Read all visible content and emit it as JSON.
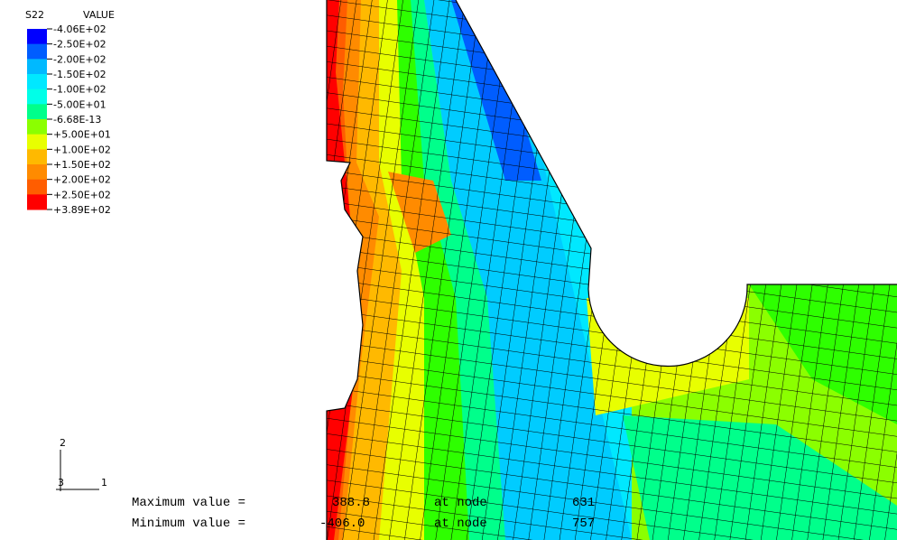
{
  "legend": {
    "title": "S22",
    "heading": "VALUE",
    "labels": [
      "-4.06E+02",
      "-2.50E+02",
      "-2.00E+02",
      "-1.50E+02",
      "-1.00E+02",
      "-5.00E+01",
      "-6.68E-13",
      "+5.00E+01",
      "+1.00E+02",
      "+1.50E+02",
      "+2.00E+02",
      "+2.50E+02",
      "+3.89E+02"
    ],
    "colors": [
      "#0000ff",
      "#005dff",
      "#00b9ff",
      "#00e8ff",
      "#00ffe8",
      "#00ff8b",
      "#2eff00",
      "#8bff00",
      "#e8ff00",
      "#ffb900",
      "#ff8b00",
      "#ff5d00",
      "#ff0000"
    ]
  },
  "triad": {
    "axis_2": "2",
    "axis_3": "3",
    "axis_1": "1"
  },
  "summary": {
    "max_label": "Maximum value =",
    "max_value": "388.8",
    "max_at": "at node",
    "max_node": "631",
    "min_label": "Minimum value =",
    "min_value": "-406.0",
    "min_at": "at node",
    "min_node": "757"
  }
}
